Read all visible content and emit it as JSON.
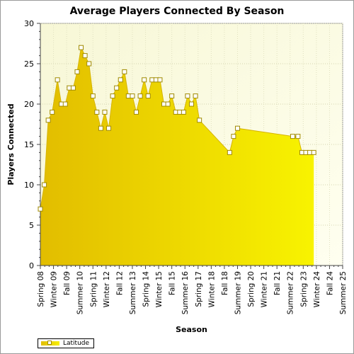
{
  "chart_data": {
    "type": "area",
    "title": "Average Players Connected By Season",
    "xlabel": "Season",
    "ylabel": "Players Connected",
    "ylim": [
      0,
      30
    ],
    "yticks": [
      0,
      5,
      10,
      15,
      20,
      25,
      30
    ],
    "categories": [
      "Spring 08",
      "Winter 09",
      "Fall 09",
      "Summer 10",
      "Spring 11",
      "Winter 12",
      "Fall 12",
      "Summer 13",
      "Spring 14",
      "Winter 15",
      "Fall 15",
      "Summer 16",
      "Spring 17",
      "Winter 18",
      "Fall 18",
      "Summer 19",
      "Spring 20",
      "Winter 21",
      "Fall 21",
      "Summer 22",
      "Spring 23",
      "Winter 24",
      "Fall 24",
      "Summer 25"
    ],
    "grid": true,
    "legend_position": "bottom-left",
    "series": [
      {
        "name": "Latitude",
        "color": "#f2d800",
        "points": [
          {
            "x": 0.0,
            "y": 7
          },
          {
            "x": 0.3,
            "y": 10
          },
          {
            "x": 0.6,
            "y": 18
          },
          {
            "x": 0.9,
            "y": 19
          },
          {
            "x": 1.3,
            "y": 23
          },
          {
            "x": 1.6,
            "y": 20
          },
          {
            "x": 1.9,
            "y": 20
          },
          {
            "x": 2.2,
            "y": 22
          },
          {
            "x": 2.5,
            "y": 22
          },
          {
            "x": 2.8,
            "y": 24
          },
          {
            "x": 3.1,
            "y": 27
          },
          {
            "x": 3.4,
            "y": 26
          },
          {
            "x": 3.7,
            "y": 25
          },
          {
            "x": 4.0,
            "y": 21
          },
          {
            "x": 4.3,
            "y": 19
          },
          {
            "x": 4.6,
            "y": 17
          },
          {
            "x": 4.9,
            "y": 19
          },
          {
            "x": 5.2,
            "y": 17
          },
          {
            "x": 5.5,
            "y": 21
          },
          {
            "x": 5.8,
            "y": 22
          },
          {
            "x": 6.1,
            "y": 23
          },
          {
            "x": 6.4,
            "y": 24
          },
          {
            "x": 6.7,
            "y": 21
          },
          {
            "x": 7.0,
            "y": 21
          },
          {
            "x": 7.3,
            "y": 19
          },
          {
            "x": 7.6,
            "y": 21
          },
          {
            "x": 7.9,
            "y": 23
          },
          {
            "x": 8.2,
            "y": 21
          },
          {
            "x": 8.5,
            "y": 23
          },
          {
            "x": 8.8,
            "y": 23
          },
          {
            "x": 9.1,
            "y": 23
          },
          {
            "x": 9.4,
            "y": 20
          },
          {
            "x": 9.7,
            "y": 20
          },
          {
            "x": 10.0,
            "y": 21
          },
          {
            "x": 10.3,
            "y": 19
          },
          {
            "x": 10.6,
            "y": 19
          },
          {
            "x": 10.9,
            "y": 19
          },
          {
            "x": 11.2,
            "y": 21
          },
          {
            "x": 11.5,
            "y": 20
          },
          {
            "x": 11.8,
            "y": 21
          },
          {
            "x": 12.1,
            "y": 18
          },
          {
            "x": 14.4,
            "y": 14
          },
          {
            "x": 14.7,
            "y": 16
          },
          {
            "x": 15.0,
            "y": 17
          },
          {
            "x": 19.2,
            "y": 16
          },
          {
            "x": 19.6,
            "y": 16
          },
          {
            "x": 19.9,
            "y": 14
          },
          {
            "x": 20.2,
            "y": 14
          },
          {
            "x": 20.5,
            "y": 14
          },
          {
            "x": 20.8,
            "y": 14
          }
        ]
      }
    ]
  }
}
